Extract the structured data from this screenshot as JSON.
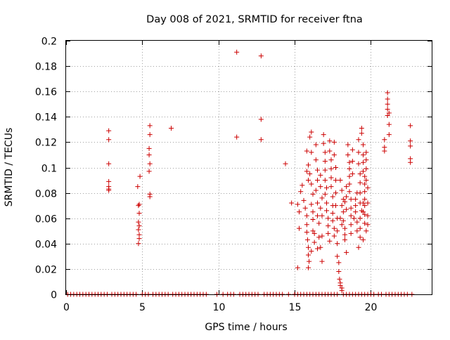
{
  "chart_data": {
    "type": "scatter",
    "title": "Day 008 of 2021, SRMTID for receiver ftna",
    "xlabel": "GPS time / hours",
    "ylabel": "SRMTID / TECUs",
    "xlim": [
      0,
      24
    ],
    "ylim": [
      0,
      0.2
    ],
    "x_ticks": [
      0,
      5,
      10,
      15,
      20
    ],
    "x_tick_labels": [
      "0",
      "5",
      "10",
      "15",
      "20"
    ],
    "y_ticks": [
      0,
      0.02,
      0.04,
      0.06,
      0.08,
      0.1,
      0.12,
      0.14,
      0.16,
      0.18,
      0.2
    ],
    "y_tick_labels": [
      "0",
      "0.02",
      "0.04",
      "0.06",
      "0.08",
      "0.1",
      "0.12",
      "0.14",
      "0.16",
      "0.18",
      "0.2"
    ],
    "grid": true,
    "marker": "plus",
    "marker_color": "#cc0000",
    "series": [
      {
        "points": [
          [
            2.8,
            0.129
          ],
          [
            2.8,
            0.122
          ],
          [
            2.8,
            0.103
          ],
          [
            2.8,
            0.089
          ],
          [
            2.8,
            0.085
          ],
          [
            2.8,
            0.083
          ],
          [
            2.8,
            0.082
          ],
          [
            4.7,
            0.085
          ],
          [
            4.75,
            0.07
          ],
          [
            4.8,
            0.071
          ],
          [
            4.85,
            0.093
          ],
          [
            4.8,
            0.064
          ],
          [
            4.75,
            0.057
          ],
          [
            4.8,
            0.054
          ],
          [
            4.75,
            0.051
          ],
          [
            4.8,
            0.047
          ],
          [
            4.8,
            0.044
          ],
          [
            4.75,
            0.04
          ],
          [
            5.5,
            0.133
          ],
          [
            5.5,
            0.126
          ],
          [
            5.45,
            0.115
          ],
          [
            5.45,
            0.11
          ],
          [
            5.5,
            0.103
          ],
          [
            5.45,
            0.097
          ],
          [
            5.5,
            0.079
          ],
          [
            5.5,
            0.077
          ],
          [
            6.9,
            0.131
          ],
          [
            11.2,
            0.191
          ],
          [
            11.2,
            0.124
          ],
          [
            12.8,
            0.188
          ],
          [
            12.8,
            0.138
          ],
          [
            12.8,
            0.122
          ],
          [
            14.4,
            0.103
          ],
          [
            14.8,
            0.072
          ],
          [
            15.2,
            0.071
          ],
          [
            15.3,
            0.065
          ],
          [
            15.4,
            0.081
          ],
          [
            15.5,
            0.086
          ],
          [
            15.3,
            0.052
          ],
          [
            15.2,
            0.021
          ],
          [
            15.6,
            0.074
          ],
          [
            15.7,
            0.068
          ],
          [
            15.8,
            0.062
          ],
          [
            15.8,
            0.055
          ],
          [
            15.8,
            0.049
          ],
          [
            15.85,
            0.043
          ],
          [
            15.9,
            0.037
          ],
          [
            15.9,
            0.031
          ],
          [
            15.95,
            0.026
          ],
          [
            15.9,
            0.021
          ],
          [
            15.8,
            0.097
          ],
          [
            15.9,
            0.09
          ],
          [
            15.8,
            0.113
          ],
          [
            15.9,
            0.102
          ],
          [
            16.0,
            0.124
          ],
          [
            16.1,
            0.128
          ],
          [
            16.1,
            0.112
          ],
          [
            16.0,
            0.095
          ],
          [
            16.1,
            0.087
          ],
          [
            16.2,
            0.079
          ],
          [
            16.1,
            0.071
          ],
          [
            16.2,
            0.065
          ],
          [
            16.2,
            0.059
          ],
          [
            16.3,
            0.048
          ],
          [
            16.3,
            0.041
          ],
          [
            16.1,
            0.034
          ],
          [
            16.2,
            0.05
          ],
          [
            16.4,
            0.118
          ],
          [
            16.4,
            0.106
          ],
          [
            16.5,
            0.098
          ],
          [
            16.5,
            0.09
          ],
          [
            16.4,
            0.082
          ],
          [
            16.5,
            0.072
          ],
          [
            16.5,
            0.062
          ],
          [
            16.6,
            0.056
          ],
          [
            16.6,
            0.045
          ],
          [
            16.5,
            0.036
          ],
          [
            16.7,
            0.094
          ],
          [
            16.7,
            0.085
          ],
          [
            16.8,
            0.076
          ],
          [
            16.7,
            0.068
          ],
          [
            16.8,
            0.062
          ],
          [
            16.8,
            0.046
          ],
          [
            16.7,
            0.037
          ],
          [
            16.8,
            0.026
          ],
          [
            16.9,
            0.126
          ],
          [
            16.9,
            0.119
          ],
          [
            17.0,
            0.112
          ],
          [
            17.0,
            0.105
          ],
          [
            17.0,
            0.098
          ],
          [
            17.0,
            0.09
          ],
          [
            17.1,
            0.084
          ],
          [
            17.0,
            0.079
          ],
          [
            17.1,
            0.072
          ],
          [
            17.1,
            0.066
          ],
          [
            17.2,
            0.06
          ],
          [
            17.2,
            0.054
          ],
          [
            17.2,
            0.048
          ],
          [
            17.3,
            0.042
          ],
          [
            17.3,
            0.121
          ],
          [
            17.3,
            0.113
          ],
          [
            17.4,
            0.106
          ],
          [
            17.4,
            0.099
          ],
          [
            17.4,
            0.092
          ],
          [
            17.4,
            0.085
          ],
          [
            17.5,
            0.077
          ],
          [
            17.5,
            0.07
          ],
          [
            17.5,
            0.064
          ],
          [
            17.5,
            0.058
          ],
          [
            17.6,
            0.052
          ],
          [
            17.6,
            0.046
          ],
          [
            17.6,
            0.12
          ],
          [
            17.6,
            0.11
          ],
          [
            17.7,
            0.1
          ],
          [
            17.7,
            0.09
          ],
          [
            17.7,
            0.08
          ],
          [
            17.7,
            0.07
          ],
          [
            17.8,
            0.06
          ],
          [
            17.8,
            0.05
          ],
          [
            17.8,
            0.04
          ],
          [
            17.8,
            0.03
          ],
          [
            17.9,
            0.025
          ],
          [
            17.9,
            0.018
          ],
          [
            17.95,
            0.012
          ],
          [
            18.0,
            0.009
          ],
          [
            18.0,
            0.007
          ],
          [
            18.1,
            0.005
          ],
          [
            18.1,
            0.003
          ],
          [
            18.0,
            0.06
          ],
          [
            18.1,
            0.055
          ],
          [
            18.1,
            0.07
          ],
          [
            18.2,
            0.075
          ],
          [
            18.1,
            0.082
          ],
          [
            18.0,
            0.09
          ],
          [
            18.2,
            0.065
          ],
          [
            18.2,
            0.058
          ],
          [
            18.3,
            0.052
          ],
          [
            18.3,
            0.047
          ],
          [
            18.3,
            0.043
          ],
          [
            18.4,
            0.033
          ],
          [
            18.3,
            0.073
          ],
          [
            18.4,
            0.067
          ],
          [
            18.4,
            0.077
          ],
          [
            18.4,
            0.085
          ],
          [
            18.5,
            0.118
          ],
          [
            18.5,
            0.11
          ],
          [
            18.6,
            0.104
          ],
          [
            18.6,
            0.099
          ],
          [
            18.6,
            0.093
          ],
          [
            18.6,
            0.087
          ],
          [
            18.6,
            0.081
          ],
          [
            18.7,
            0.075
          ],
          [
            18.7,
            0.068
          ],
          [
            18.7,
            0.062
          ],
          [
            18.7,
            0.055
          ],
          [
            18.7,
            0.048
          ],
          [
            18.8,
            0.114
          ],
          [
            18.8,
            0.105
          ],
          [
            18.8,
            0.095
          ],
          [
            18.9,
            0.06
          ],
          [
            19.0,
            0.065
          ],
          [
            19.0,
            0.07
          ],
          [
            19.0,
            0.075
          ],
          [
            19.1,
            0.08
          ],
          [
            19.1,
            0.057
          ],
          [
            19.1,
            0.05
          ],
          [
            19.2,
            0.122
          ],
          [
            19.2,
            0.112
          ],
          [
            19.2,
            0.103
          ],
          [
            19.3,
            0.095
          ],
          [
            19.3,
            0.088
          ],
          [
            19.3,
            0.08
          ],
          [
            19.3,
            0.072
          ],
          [
            19.4,
            0.066
          ],
          [
            19.3,
            0.06
          ],
          [
            19.3,
            0.052
          ],
          [
            19.3,
            0.045
          ],
          [
            19.2,
            0.037
          ],
          [
            19.4,
            0.131
          ],
          [
            19.4,
            0.127
          ],
          [
            19.5,
            0.118
          ],
          [
            19.5,
            0.11
          ],
          [
            19.5,
            0.104
          ],
          [
            19.5,
            0.097
          ],
          [
            19.6,
            0.093
          ],
          [
            19.6,
            0.087
          ],
          [
            19.6,
            0.081
          ],
          [
            19.6,
            0.075
          ],
          [
            19.6,
            0.07
          ],
          [
            19.6,
            0.063
          ],
          [
            19.6,
            0.056
          ],
          [
            19.7,
            0.05
          ],
          [
            19.5,
            0.043
          ],
          [
            19.5,
            0.065
          ],
          [
            19.5,
            0.072
          ],
          [
            19.7,
            0.112
          ],
          [
            19.7,
            0.106
          ],
          [
            19.7,
            0.099
          ],
          [
            19.7,
            0.09
          ],
          [
            19.8,
            0.084
          ],
          [
            19.8,
            0.072
          ],
          [
            19.8,
            0.062
          ],
          [
            19.8,
            0.055
          ],
          [
            20.9,
            0.122
          ],
          [
            20.9,
            0.116
          ],
          [
            20.9,
            0.113
          ],
          [
            21.1,
            0.159
          ],
          [
            21.1,
            0.154
          ],
          [
            21.1,
            0.15
          ],
          [
            21.1,
            0.146
          ],
          [
            21.2,
            0.143
          ],
          [
            21.1,
            0.141
          ],
          [
            21.2,
            0.134
          ],
          [
            21.2,
            0.126
          ],
          [
            22.6,
            0.133
          ],
          [
            22.6,
            0.121
          ],
          [
            22.6,
            0.117
          ],
          [
            22.6,
            0.107
          ],
          [
            22.6,
            0.104
          ],
          [
            0.1,
            0
          ],
          [
            0.3,
            0
          ],
          [
            0.5,
            0
          ],
          [
            0.7,
            0
          ],
          [
            0.9,
            0
          ],
          [
            1.1,
            0
          ],
          [
            1.3,
            0
          ],
          [
            1.5,
            0
          ],
          [
            1.7,
            0
          ],
          [
            1.9,
            0
          ],
          [
            2.1,
            0
          ],
          [
            2.3,
            0
          ],
          [
            2.5,
            0
          ],
          [
            2.7,
            0
          ],
          [
            3.0,
            0
          ],
          [
            3.2,
            0
          ],
          [
            3.4,
            0
          ],
          [
            3.6,
            0
          ],
          [
            3.8,
            0
          ],
          [
            4.0,
            0
          ],
          [
            4.2,
            0
          ],
          [
            4.4,
            0
          ],
          [
            4.6,
            0
          ],
          [
            5.0,
            0
          ],
          [
            5.2,
            0
          ],
          [
            5.4,
            0
          ],
          [
            5.7,
            0
          ],
          [
            5.9,
            0
          ],
          [
            6.1,
            0
          ],
          [
            6.3,
            0
          ],
          [
            6.5,
            0
          ],
          [
            6.7,
            0
          ],
          [
            7.0,
            0
          ],
          [
            7.2,
            0
          ],
          [
            7.4,
            0
          ],
          [
            7.6,
            0
          ],
          [
            7.8,
            0
          ],
          [
            8.0,
            0
          ],
          [
            8.2,
            0
          ],
          [
            8.4,
            0
          ],
          [
            8.6,
            0
          ],
          [
            8.8,
            0
          ],
          [
            9.0,
            0
          ],
          [
            9.2,
            0
          ],
          [
            9.9,
            0
          ],
          [
            10.3,
            0
          ],
          [
            10.6,
            0
          ],
          [
            10.8,
            0
          ],
          [
            11.0,
            0
          ],
          [
            11.4,
            0
          ],
          [
            11.6,
            0
          ],
          [
            11.8,
            0
          ],
          [
            12.0,
            0
          ],
          [
            12.2,
            0
          ],
          [
            12.4,
            0
          ],
          [
            12.6,
            0
          ],
          [
            13.0,
            0
          ],
          [
            13.2,
            0
          ],
          [
            13.4,
            0
          ],
          [
            13.6,
            0
          ],
          [
            13.8,
            0
          ],
          [
            14.0,
            0
          ],
          [
            14.2,
            0
          ],
          [
            14.6,
            0
          ],
          [
            15.0,
            0
          ],
          [
            15.2,
            0
          ],
          [
            15.4,
            0
          ],
          [
            15.6,
            0
          ],
          [
            15.8,
            0
          ],
          [
            16.0,
            0
          ],
          [
            16.2,
            0
          ],
          [
            16.4,
            0
          ],
          [
            16.6,
            0
          ],
          [
            16.8,
            0
          ],
          [
            17.0,
            0
          ],
          [
            17.2,
            0
          ],
          [
            17.4,
            0
          ],
          [
            17.6,
            0
          ],
          [
            17.8,
            0
          ],
          [
            18.2,
            0
          ],
          [
            18.4,
            0
          ],
          [
            18.6,
            0
          ],
          [
            18.8,
            0
          ],
          [
            19.0,
            0
          ],
          [
            19.2,
            0
          ],
          [
            19.4,
            0
          ],
          [
            19.6,
            0
          ],
          [
            19.8,
            0
          ],
          [
            20.0,
            0
          ],
          [
            20.2,
            0
          ],
          [
            20.5,
            0
          ],
          [
            20.7,
            0
          ],
          [
            21.0,
            0
          ],
          [
            21.2,
            0
          ],
          [
            21.4,
            0
          ],
          [
            21.6,
            0
          ],
          [
            21.8,
            0
          ],
          [
            22.0,
            0
          ],
          [
            22.2,
            0
          ],
          [
            22.4,
            0
          ],
          [
            22.7,
            0
          ]
        ]
      }
    ]
  }
}
